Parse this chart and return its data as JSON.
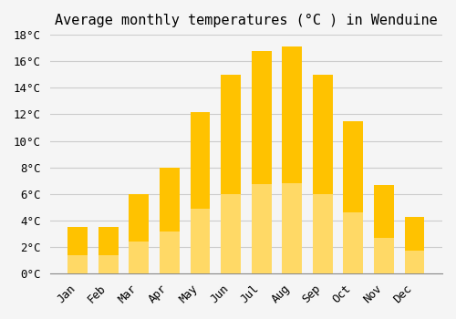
{
  "title": "Average monthly temperatures (°C ) in Wenduine",
  "months": [
    "Jan",
    "Feb",
    "Mar",
    "Apr",
    "May",
    "Jun",
    "Jul",
    "Aug",
    "Sep",
    "Oct",
    "Nov",
    "Dec"
  ],
  "values": [
    3.5,
    3.5,
    6.0,
    8.0,
    12.2,
    15.0,
    16.8,
    17.1,
    15.0,
    11.5,
    6.7,
    4.3
  ],
  "bar_color_top": "#FFC200",
  "bar_color_bottom": "#FFD966",
  "background_color": "#F5F5F5",
  "grid_color": "#CCCCCC",
  "ylim": [
    0,
    18
  ],
  "yticks": [
    0,
    2,
    4,
    6,
    8,
    10,
    12,
    14,
    16,
    18
  ],
  "title_fontsize": 11,
  "tick_fontsize": 9,
  "font_family": "monospace"
}
